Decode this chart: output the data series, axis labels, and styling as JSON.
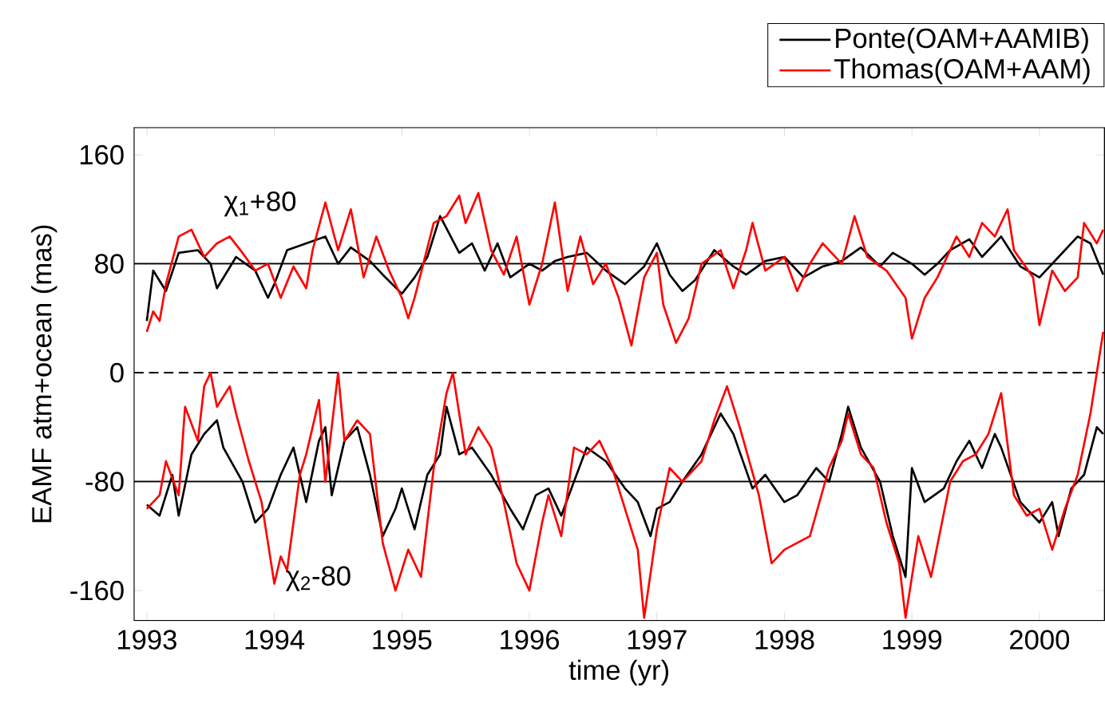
{
  "chart_data": {
    "type": "line",
    "xlabel": "time (yr)",
    "ylabel": "EAMF atm+ocean (mas)",
    "xlim": [
      1992.9,
      2000.51
    ],
    "ylim": [
      -182,
      180
    ],
    "xticks": [
      1993,
      1994,
      1995,
      1996,
      1997,
      1998,
      1999,
      2000
    ],
    "yticks": [
      -160,
      -80,
      0,
      80,
      160
    ],
    "legend": "top right",
    "grid": false,
    "marker": "none",
    "line_style": "solid",
    "ref_lines": [
      {
        "axis": "y",
        "value": 80,
        "color": "#000000",
        "line_style": "solid"
      },
      {
        "axis": "y",
        "value": 0,
        "color": "#000000",
        "line_style": "dashed"
      },
      {
        "axis": "y",
        "value": -80,
        "color": "#000000",
        "line_style": "solid"
      }
    ],
    "annotations": [
      "χ$_{1}$+80",
      "χ$_{2}$-80"
    ],
    "series": [
      {
        "name": "Ponte(OAM+AAMIB)",
        "color": "#000000",
        "x": [
          1993.0,
          1993.05,
          1993.15,
          1993.25,
          1993.4,
          1993.5,
          1993.55,
          1993.7,
          1993.85,
          1993.95,
          1994.0,
          1994.1,
          1994.25,
          1994.4,
          1994.5,
          1994.6,
          1994.75,
          1994.85,
          1995.0,
          1995.1,
          1995.2,
          1995.3,
          1995.45,
          1995.55,
          1995.65,
          1995.75,
          1995.85,
          1996.0,
          1996.1,
          1996.2,
          1996.3,
          1996.45,
          1996.6,
          1996.75,
          1996.9,
          1997.0,
          1997.1,
          1997.2,
          1997.3,
          1997.45,
          1997.6,
          1997.7,
          1997.85,
          1998.0,
          1998.15,
          1998.3,
          1998.45,
          1998.6,
          1998.75,
          1998.85,
          1999.0,
          1999.1,
          1999.2,
          1999.3,
          1999.45,
          1999.55,
          1999.7,
          1999.85,
          2000.0,
          2000.15,
          2000.3,
          2000.4,
          2000.5
        ],
        "values": [
          38,
          75,
          60,
          88,
          90,
          80,
          62,
          85,
          75,
          55,
          65,
          90,
          95,
          100,
          80,
          92,
          82,
          72,
          58,
          70,
          85,
          115,
          88,
          95,
          75,
          95,
          70,
          80,
          75,
          82,
          85,
          88,
          75,
          65,
          78,
          95,
          72,
          60,
          68,
          90,
          78,
          72,
          82,
          85,
          70,
          78,
          82,
          92,
          78,
          88,
          80,
          72,
          80,
          90,
          98,
          85,
          100,
          78,
          70,
          85,
          100,
          95,
          72
        ]
      },
      {
        "name": "Thomas(OAM+AAM)",
        "color": "#ff0000",
        "x": [
          1993.0,
          1993.05,
          1993.1,
          1993.15,
          1993.25,
          1993.35,
          1993.45,
          1993.55,
          1993.65,
          1993.75,
          1993.85,
          1993.95,
          1994.05,
          1994.15,
          1994.25,
          1994.3,
          1994.4,
          1994.5,
          1994.6,
          1994.7,
          1994.8,
          1994.9,
          1995.0,
          1995.05,
          1995.1,
          1995.25,
          1995.35,
          1995.45,
          1995.5,
          1995.6,
          1995.7,
          1995.8,
          1995.9,
          1996.0,
          1996.1,
          1996.2,
          1996.3,
          1996.4,
          1996.5,
          1996.6,
          1996.7,
          1996.8,
          1996.9,
          1997.0,
          1997.05,
          1997.15,
          1997.25,
          1997.35,
          1997.5,
          1997.6,
          1997.7,
          1997.75,
          1997.85,
          1998.0,
          1998.1,
          1998.2,
          1998.3,
          1998.45,
          1998.55,
          1998.65,
          1998.8,
          1998.95,
          1999.0,
          1999.1,
          1999.2,
          1999.35,
          1999.45,
          1999.55,
          1999.65,
          1999.75,
          1999.8,
          1999.95,
          2000.0,
          2000.1,
          2000.2,
          2000.3,
          2000.35,
          2000.45,
          2000.5
        ],
        "values": [
          30,
          45,
          38,
          65,
          100,
          105,
          85,
          95,
          100,
          88,
          75,
          80,
          55,
          78,
          62,
          90,
          125,
          90,
          120,
          70,
          100,
          75,
          55,
          40,
          55,
          110,
          115,
          130,
          110,
          132,
          90,
          72,
          100,
          50,
          80,
          125,
          60,
          100,
          65,
          80,
          55,
          20,
          70,
          88,
          50,
          22,
          40,
          80,
          90,
          62,
          90,
          110,
          75,
          85,
          60,
          80,
          95,
          80,
          115,
          85,
          75,
          55,
          25,
          55,
          70,
          100,
          85,
          110,
          100,
          120,
          90,
          70,
          35,
          75,
          60,
          70,
          110,
          95,
          105
        ]
      },
      {
        "color": "#000000",
        "x": [
          1993.0,
          1993.1,
          1993.2,
          1993.25,
          1993.35,
          1993.45,
          1993.55,
          1993.6,
          1993.75,
          1993.85,
          1993.95,
          1994.05,
          1994.15,
          1994.25,
          1994.35,
          1994.4,
          1994.45,
          1994.55,
          1994.65,
          1994.75,
          1994.85,
          1994.95,
          1995.0,
          1995.1,
          1995.2,
          1995.3,
          1995.35,
          1995.45,
          1995.55,
          1995.7,
          1995.85,
          1995.95,
          1996.05,
          1996.15,
          1996.25,
          1996.35,
          1996.45,
          1996.6,
          1996.75,
          1996.85,
          1996.95,
          1997.0,
          1997.1,
          1997.2,
          1997.35,
          1997.45,
          1997.5,
          1997.6,
          1997.75,
          1997.85,
          1998.0,
          1998.1,
          1998.25,
          1998.35,
          1998.45,
          1998.5,
          1998.6,
          1998.75,
          1998.85,
          1998.95,
          1999.0,
          1999.1,
          1999.25,
          1999.35,
          1999.45,
          1999.55,
          1999.65,
          1999.7,
          1999.85,
          2000.0,
          2000.1,
          2000.15,
          2000.25,
          2000.35,
          2000.45,
          2000.5
        ],
        "values": [
          -97,
          -105,
          -75,
          -105,
          -60,
          -45,
          -35,
          -55,
          -80,
          -110,
          -100,
          -75,
          -55,
          -95,
          -50,
          -40,
          -90,
          -50,
          -40,
          -75,
          -120,
          -100,
          -85,
          -115,
          -75,
          -60,
          -25,
          -60,
          -55,
          -75,
          -100,
          -115,
          -90,
          -85,
          -105,
          -80,
          -55,
          -65,
          -85,
          -95,
          -120,
          -100,
          -95,
          -80,
          -60,
          -40,
          -30,
          -45,
          -85,
          -75,
          -95,
          -90,
          -70,
          -80,
          -45,
          -25,
          -55,
          -80,
          -120,
          -150,
          -70,
          -95,
          -85,
          -65,
          -50,
          -70,
          -45,
          -55,
          -95,
          -110,
          -95,
          -120,
          -85,
          -75,
          -40,
          -45
        ]
      },
      {
        "color": "#ff0000",
        "x": [
          1993.0,
          1993.1,
          1993.15,
          1993.25,
          1993.3,
          1993.4,
          1993.45,
          1993.5,
          1993.55,
          1993.65,
          1993.7,
          1993.8,
          1993.9,
          1994.0,
          1994.05,
          1994.1,
          1994.2,
          1994.25,
          1994.35,
          1994.4,
          1994.5,
          1994.55,
          1994.65,
          1994.75,
          1994.85,
          1994.95,
          1995.05,
          1995.15,
          1995.25,
          1995.35,
          1995.4,
          1995.5,
          1995.6,
          1995.7,
          1995.8,
          1995.9,
          1996.0,
          1996.1,
          1996.15,
          1996.25,
          1996.35,
          1996.45,
          1996.55,
          1996.65,
          1996.75,
          1996.85,
          1996.9,
          1997.0,
          1997.1,
          1997.2,
          1997.35,
          1997.45,
          1997.55,
          1997.65,
          1997.8,
          1997.9,
          1998.0,
          1998.1,
          1998.2,
          1998.35,
          1998.45,
          1998.5,
          1998.6,
          1998.7,
          1998.8,
          1998.9,
          1998.95,
          1999.05,
          1999.15,
          1999.3,
          1999.4,
          1999.5,
          1999.6,
          1999.7,
          1999.8,
          1999.9,
          2000.0,
          2000.1,
          2000.2,
          2000.3,
          2000.4,
          2000.45,
          2000.5
        ],
        "values": [
          -100,
          -90,
          -65,
          -90,
          -25,
          -50,
          -10,
          0,
          -25,
          -10,
          -30,
          -65,
          -95,
          -155,
          -135,
          -145,
          -75,
          -60,
          -20,
          -80,
          0,
          -50,
          -35,
          -45,
          -125,
          -160,
          -130,
          -150,
          -70,
          -15,
          0,
          -60,
          -40,
          -55,
          -95,
          -140,
          -160,
          -110,
          -90,
          -120,
          -55,
          -60,
          -50,
          -70,
          -100,
          -130,
          -180,
          -115,
          -70,
          -80,
          -65,
          -35,
          -10,
          -40,
          -90,
          -140,
          -130,
          -125,
          -120,
          -70,
          -50,
          -30,
          -60,
          -70,
          -110,
          -140,
          -180,
          -120,
          -150,
          -80,
          -65,
          -60,
          -45,
          -15,
          -90,
          -105,
          -100,
          -130,
          -100,
          -75,
          -30,
          0,
          30
        ]
      }
    ]
  }
}
